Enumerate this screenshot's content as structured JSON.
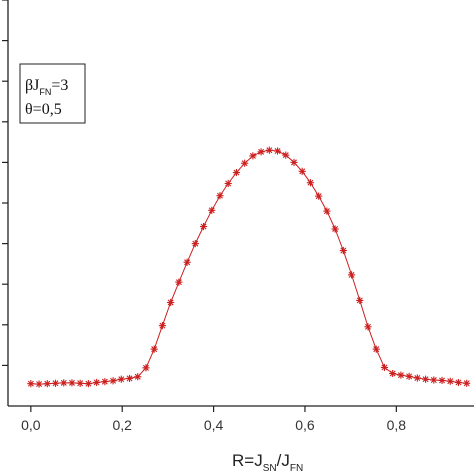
{
  "chart_data": {
    "type": "line",
    "xlabel": {
      "main_1": "R=J",
      "sub_1": "SN",
      "main_2": "/J",
      "sub_2": "FN"
    },
    "x_ticks": [
      "0,0",
      "0,2",
      "0,4",
      "0,6",
      "0,8"
    ],
    "x_tick_values": [
      0.0,
      0.2,
      0.4,
      0.6,
      0.8
    ],
    "xlim": [
      -0.05,
      0.97
    ],
    "ylim": [
      0,
      10
    ],
    "y_tick_values": [
      1,
      2,
      3,
      4,
      5,
      6,
      7,
      8,
      9,
      10
    ],
    "grid": false,
    "annotation": {
      "line1_prefix": "βJ",
      "line1_sub": "FN",
      "line1_suffix": "=3",
      "line2": "θ=0,5"
    },
    "series": [
      {
        "marker": "asterisk",
        "color": "#cc1f1f",
        "x": [
          0.0,
          0.018,
          0.036,
          0.054,
          0.072,
          0.09,
          0.108,
          0.126,
          0.144,
          0.162,
          0.18,
          0.198,
          0.216,
          0.234,
          0.252,
          0.27,
          0.288,
          0.306,
          0.324,
          0.342,
          0.36,
          0.378,
          0.396,
          0.414,
          0.432,
          0.45,
          0.468,
          0.486,
          0.504,
          0.522,
          0.54,
          0.558,
          0.576,
          0.594,
          0.612,
          0.63,
          0.648,
          0.666,
          0.684,
          0.702,
          0.72,
          0.738,
          0.756,
          0.774,
          0.792,
          0.81,
          0.828,
          0.846,
          0.864,
          0.882,
          0.9,
          0.918,
          0.936,
          0.954
        ],
        "y": [
          0.55,
          0.54,
          0.55,
          0.56,
          0.57,
          0.57,
          0.56,
          0.55,
          0.58,
          0.6,
          0.62,
          0.66,
          0.68,
          0.72,
          0.94,
          1.4,
          1.98,
          2.55,
          3.05,
          3.54,
          4.0,
          4.42,
          4.82,
          5.18,
          5.48,
          5.75,
          5.98,
          6.16,
          6.26,
          6.3,
          6.28,
          6.18,
          6.0,
          5.78,
          5.5,
          5.17,
          4.8,
          4.36,
          3.83,
          3.23,
          2.6,
          1.95,
          1.4,
          0.95,
          0.8,
          0.76,
          0.73,
          0.69,
          0.66,
          0.64,
          0.63,
          0.61,
          0.58,
          0.56
        ]
      }
    ]
  }
}
